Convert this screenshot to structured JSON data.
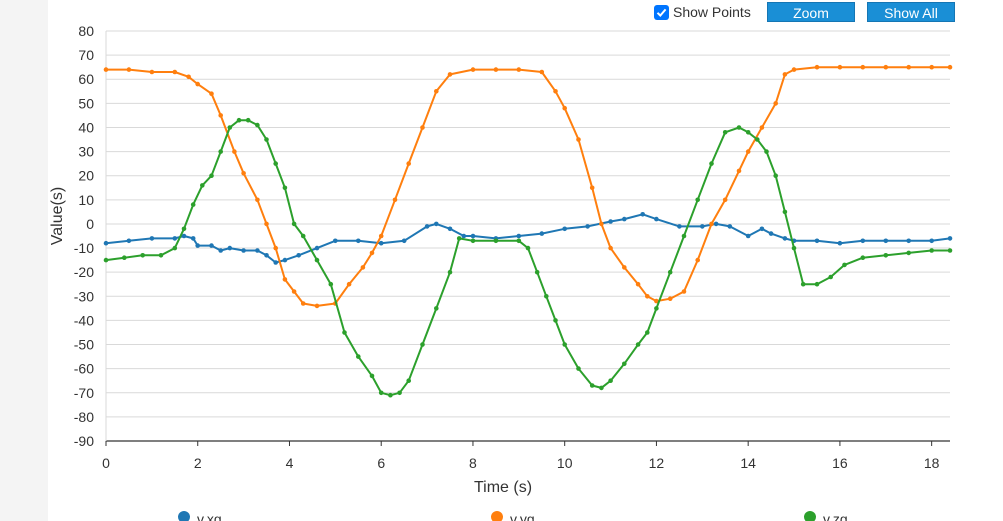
{
  "toolbar": {
    "show_points_label": "Show Points",
    "show_points_checked": true,
    "zoom_label": "Zoom",
    "show_all_label": "Show All"
  },
  "colors": {
    "grid": "#d9d9d9",
    "axis": "#333333",
    "button": "#1a8fd6",
    "checkbox": "#0075ff"
  },
  "chart_data": {
    "type": "line",
    "title": "",
    "xlabel": "Time (s)",
    "ylabel": "Value(s)",
    "xlim": [
      0,
      18.4
    ],
    "ylim": [
      -90,
      80
    ],
    "xticks": [
      0,
      2,
      4,
      6,
      8,
      10,
      12,
      14,
      16,
      18
    ],
    "yticks": [
      80,
      70,
      60,
      50,
      40,
      30,
      20,
      10,
      0,
      -10,
      -20,
      -30,
      -40,
      -50,
      -60,
      -70,
      -80,
      -90
    ],
    "grid": true,
    "legend_position": "bottom",
    "series": [
      {
        "name": "v.xg",
        "color": "#1f77b4",
        "x": [
          0,
          0.5,
          1.0,
          1.5,
          1.7,
          1.9,
          2.0,
          2.3,
          2.5,
          2.7,
          3.0,
          3.3,
          3.5,
          3.7,
          3.9,
          4.2,
          4.6,
          5.0,
          5.5,
          6.0,
          6.5,
          7.0,
          7.2,
          7.5,
          7.8,
          8.0,
          8.5,
          9.0,
          9.5,
          10.0,
          10.5,
          11.0,
          11.3,
          11.7,
          12.0,
          12.5,
          13.0,
          13.3,
          13.6,
          14.0,
          14.3,
          14.5,
          14.8,
          15.0,
          15.5,
          16.0,
          16.5,
          17.0,
          17.5,
          18.0,
          18.4
        ],
        "y": [
          -8,
          -7,
          -6,
          -6,
          -5,
          -6,
          -9,
          -9,
          -11,
          -10,
          -11,
          -11,
          -13,
          -16,
          -15,
          -13,
          -10,
          -7,
          -7,
          -8,
          -7,
          -1,
          0,
          -2,
          -5,
          -5,
          -6,
          -5,
          -4,
          -2,
          -1,
          1,
          2,
          4,
          2,
          -1,
          -1,
          0,
          -1,
          -5,
          -2,
          -4,
          -6,
          -7,
          -7,
          -8,
          -7,
          -7,
          -7,
          -7,
          -6
        ]
      },
      {
        "name": "v.yg",
        "color": "#ff7f0e",
        "x": [
          0,
          0.5,
          1.0,
          1.5,
          1.8,
          2.0,
          2.3,
          2.5,
          2.8,
          3.0,
          3.3,
          3.5,
          3.7,
          3.9,
          4.1,
          4.3,
          4.6,
          5.0,
          5.3,
          5.6,
          5.8,
          6.0,
          6.3,
          6.6,
          6.9,
          7.2,
          7.5,
          8.0,
          8.5,
          9.0,
          9.5,
          9.8,
          10.0,
          10.3,
          10.6,
          10.8,
          11.0,
          11.3,
          11.6,
          11.8,
          12.0,
          12.3,
          12.6,
          12.9,
          13.2,
          13.5,
          13.8,
          14.0,
          14.3,
          14.6,
          14.8,
          15.0,
          15.5,
          16.0,
          16.5,
          17.0,
          17.5,
          18.0,
          18.4
        ],
        "y": [
          64,
          64,
          63,
          63,
          61,
          58,
          54,
          45,
          30,
          21,
          10,
          0,
          -10,
          -23,
          -28,
          -33,
          -34,
          -33,
          -25,
          -18,
          -12,
          -5,
          10,
          25,
          40,
          55,
          62,
          64,
          64,
          64,
          63,
          55,
          48,
          35,
          15,
          0,
          -10,
          -18,
          -25,
          -30,
          -32,
          -31,
          -28,
          -15,
          0,
          10,
          22,
          30,
          40,
          50,
          62,
          64,
          65,
          65,
          65,
          65,
          65,
          65,
          65
        ]
      },
      {
        "name": "v.zg",
        "color": "#2ca02c",
        "x": [
          0,
          0.4,
          0.8,
          1.2,
          1.5,
          1.7,
          1.9,
          2.1,
          2.3,
          2.5,
          2.7,
          2.9,
          3.1,
          3.3,
          3.5,
          3.7,
          3.9,
          4.1,
          4.3,
          4.6,
          4.9,
          5.2,
          5.5,
          5.8,
          6.0,
          6.2,
          6.4,
          6.6,
          6.9,
          7.2,
          7.5,
          7.7,
          8.0,
          8.5,
          9.0,
          9.2,
          9.4,
          9.6,
          9.8,
          10.0,
          10.3,
          10.6,
          10.8,
          11.0,
          11.3,
          11.6,
          11.8,
          12.0,
          12.3,
          12.6,
          12.9,
          13.2,
          13.5,
          13.8,
          14.0,
          14.2,
          14.4,
          14.6,
          14.8,
          15.0,
          15.2,
          15.5,
          15.8,
          16.1,
          16.5,
          17.0,
          17.5,
          18.0,
          18.4
        ],
        "y": [
          -15,
          -14,
          -13,
          -13,
          -10,
          -2,
          8,
          16,
          20,
          30,
          40,
          43,
          43,
          41,
          35,
          25,
          15,
          0,
          -5,
          -15,
          -25,
          -45,
          -55,
          -63,
          -70,
          -71,
          -70,
          -65,
          -50,
          -35,
          -20,
          -6,
          -7,
          -7,
          -7,
          -10,
          -20,
          -30,
          -40,
          -50,
          -60,
          -67,
          -68,
          -65,
          -58,
          -50,
          -45,
          -35,
          -20,
          -5,
          10,
          25,
          38,
          40,
          38,
          35,
          30,
          20,
          5,
          -10,
          -25,
          -25,
          -22,
          -17,
          -14,
          -13,
          -12,
          -11,
          -11
        ]
      }
    ]
  }
}
